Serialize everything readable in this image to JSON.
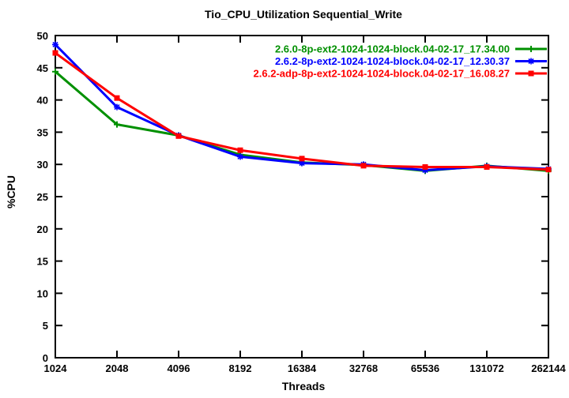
{
  "chart_data": {
    "type": "line",
    "title": "Tio_CPU_Utilization Sequential_Write",
    "xlabel": "Threads",
    "ylabel": "%CPU",
    "x_scale": "log2",
    "grid": false,
    "legend_position": "top-right-inside",
    "categories": [
      "1024",
      "2048",
      "4096",
      "8192",
      "16384",
      "32768",
      "65536",
      "131072",
      "262144"
    ],
    "ylim": [
      0,
      50
    ],
    "yticks": [
      "0",
      "5",
      "10",
      "15",
      "20",
      "25",
      "30",
      "35",
      "40",
      "45",
      "50"
    ],
    "axis_color": "#000000",
    "background_color": "#ffffff",
    "series": [
      {
        "name": "2.6.0-8p-ext2-1024-1024-block.04-02-17_17.34.00",
        "color": "#009000",
        "marker": "plus",
        "values": [
          44.4,
          36.2,
          34.5,
          31.5,
          30.3,
          29.9,
          29.0,
          29.8,
          29.0
        ]
      },
      {
        "name": "2.6.2-8p-ext2-1024-1024-block.04-02-17_12.30.37",
        "color": "#0000ff",
        "marker": "asterisk",
        "values": [
          48.6,
          38.9,
          34.5,
          31.2,
          30.2,
          30.0,
          29.1,
          29.7,
          29.3
        ]
      },
      {
        "name": "2.6.2-adp-8p-ext2-1024-1024-block.04-02-17_16.08.27",
        "color": "#ff0000",
        "marker": "square",
        "values": [
          47.3,
          40.3,
          34.4,
          32.2,
          30.9,
          29.8,
          29.6,
          29.6,
          29.2
        ]
      }
    ]
  }
}
